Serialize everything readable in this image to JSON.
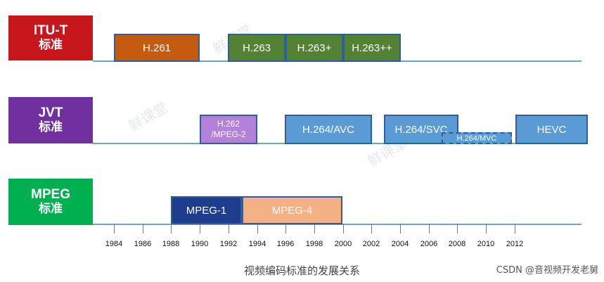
{
  "rows": [
    {
      "id": "itu",
      "line1": "ITU-T",
      "line2": "标准",
      "color": "#c8161d"
    },
    {
      "id": "jvt",
      "line1": "JVT",
      "line2": "标准",
      "color": "#7030a0"
    },
    {
      "id": "mpeg",
      "line1": "MPEG",
      "line2": "标准",
      "color": "#00b050"
    }
  ],
  "boxes": [
    {
      "label": "H.261",
      "fill": "#c55a11"
    },
    {
      "label": "H.263",
      "fill": "#548235"
    },
    {
      "label": "H.263+",
      "fill": "#548235"
    },
    {
      "label": "H.263++",
      "fill": "#548235"
    },
    {
      "label": "H.262 /MPEG-2",
      "fill": "#b381d9"
    },
    {
      "label": "H.264/AVC",
      "fill": "#5b9bd5"
    },
    {
      "label": "H.264/SVC",
      "fill": "#5b9bd5"
    },
    {
      "label": "H.264/MVC",
      "fill": "#5b9bd5"
    },
    {
      "label": "HEVC",
      "fill": "#5b9bd5"
    },
    {
      "label": "MPEG-1",
      "fill": "#1f3d8f"
    },
    {
      "label": "MPEG-4",
      "fill": "#f4b183"
    }
  ],
  "years": [
    "1984",
    "1986",
    "1988",
    "1990",
    "1992",
    "1994",
    "1996",
    "1998",
    "2000",
    "2002",
    "2004",
    "2006",
    "2008",
    "2010",
    "2012"
  ],
  "caption": "视频编码标准的发展关系",
  "credit": "CSDN @音视频开发老舅",
  "watermark": "鲜课堂"
}
